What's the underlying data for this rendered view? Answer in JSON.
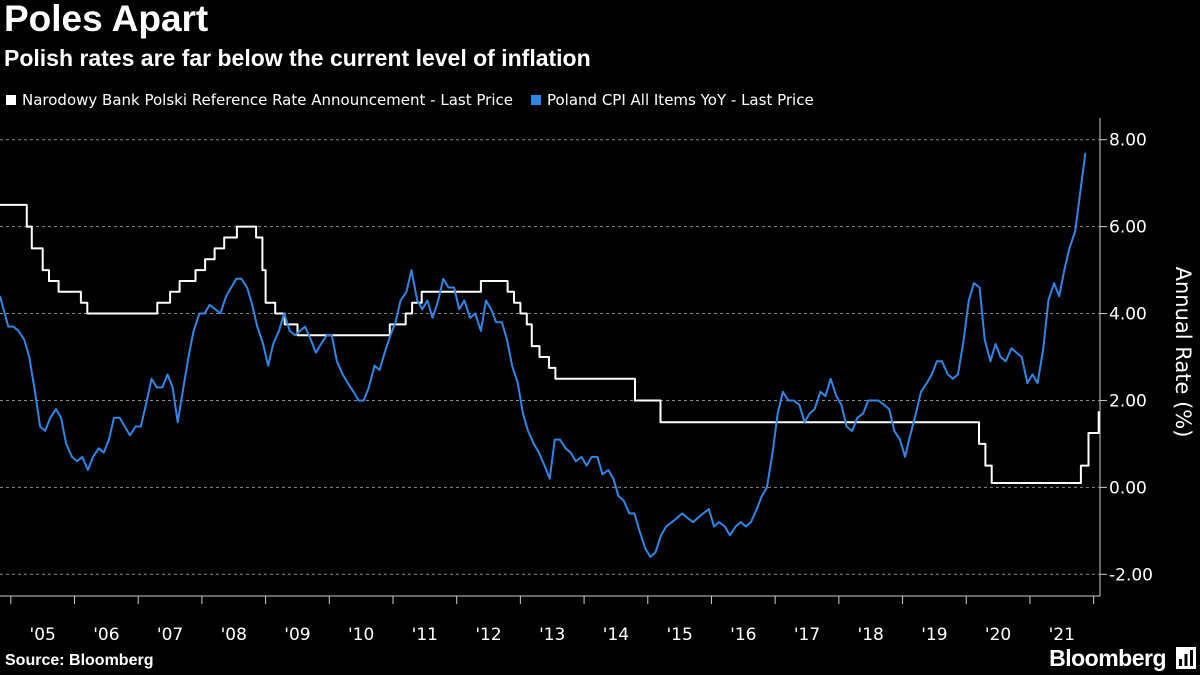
{
  "header": {
    "title": "Poles Apart",
    "subtitle": "Polish rates are far below the current level of inflation"
  },
  "footer": {
    "source": "Source: Bloomberg",
    "brand": "Bloomberg",
    "brand_icon": "bloomberg-logo-icon"
  },
  "colors": {
    "background": "#000000",
    "reference_rate": "#ffffff",
    "cpi": "#2f86e6",
    "grid": "#8a8a8a",
    "text": "#ffffff"
  },
  "chart_data": {
    "type": "line",
    "title": "Poles Apart",
    "subtitle": "Polish rates are far below the current level of inflation",
    "ylabel": "Annual Rate (%)",
    "xlabel": "",
    "ylim": [
      -2.5,
      8.5
    ],
    "xlim": [
      2004.83,
      2022.1
    ],
    "yticks": [
      8,
      6,
      4,
      2,
      0,
      -2
    ],
    "ytick_labels": [
      "8.00",
      "6.00",
      "4.00",
      "2.00",
      "0.00",
      "-2.00"
    ],
    "xtick_labels": [
      "'05",
      "'06",
      "'07",
      "'08",
      "'09",
      "'10",
      "'11",
      "'12",
      "'13",
      "'14",
      "'15",
      "'16",
      "'17",
      "'18",
      "'19",
      "'20",
      "'21"
    ],
    "grid": "horizontal dashed",
    "legend_position": "top-left",
    "series": [
      {
        "name": "Narodowy Bank Polski Reference Rate Announcement - Last Price",
        "color": "#ffffff",
        "step": true,
        "points": [
          [
            2004.83,
            6.5
          ],
          [
            2005.25,
            6.0
          ],
          [
            2005.33,
            5.5
          ],
          [
            2005.5,
            5.0
          ],
          [
            2005.6,
            4.75
          ],
          [
            2005.75,
            4.5
          ],
          [
            2006.1,
            4.25
          ],
          [
            2006.2,
            4.0
          ],
          [
            2007.3,
            4.25
          ],
          [
            2007.5,
            4.5
          ],
          [
            2007.65,
            4.75
          ],
          [
            2007.9,
            5.0
          ],
          [
            2008.05,
            5.25
          ],
          [
            2008.2,
            5.5
          ],
          [
            2008.35,
            5.75
          ],
          [
            2008.55,
            6.0
          ],
          [
            2008.85,
            5.75
          ],
          [
            2008.95,
            5.0
          ],
          [
            2009.0,
            4.25
          ],
          [
            2009.15,
            4.0
          ],
          [
            2009.3,
            3.75
          ],
          [
            2009.5,
            3.5
          ],
          [
            2010.95,
            3.75
          ],
          [
            2011.2,
            4.0
          ],
          [
            2011.3,
            4.25
          ],
          [
            2011.45,
            4.5
          ],
          [
            2011.9,
            4.5
          ],
          [
            2012.38,
            4.75
          ],
          [
            2012.8,
            4.5
          ],
          [
            2012.9,
            4.25
          ],
          [
            2013.0,
            4.0
          ],
          [
            2013.1,
            3.75
          ],
          [
            2013.18,
            3.25
          ],
          [
            2013.3,
            3.0
          ],
          [
            2013.45,
            2.75
          ],
          [
            2013.55,
            2.5
          ],
          [
            2014.8,
            2.0
          ],
          [
            2015.2,
            1.5
          ],
          [
            2020.2,
            1.0
          ],
          [
            2020.3,
            0.5
          ],
          [
            2020.4,
            0.1
          ],
          [
            2021.8,
            0.5
          ],
          [
            2021.92,
            1.25
          ],
          [
            2022.08,
            1.75
          ]
        ]
      },
      {
        "name": "Poland CPI All Items YoY - Last Price",
        "color": "#2f86e6",
        "step": false,
        "points": [
          [
            2004.83,
            4.4
          ],
          [
            2004.96,
            3.7
          ],
          [
            2005.04,
            3.7
          ],
          [
            2005.12,
            3.6
          ],
          [
            2005.21,
            3.4
          ],
          [
            2005.29,
            3.0
          ],
          [
            2005.38,
            2.2
          ],
          [
            2005.46,
            1.4
          ],
          [
            2005.54,
            1.3
          ],
          [
            2005.62,
            1.6
          ],
          [
            2005.71,
            1.8
          ],
          [
            2005.79,
            1.6
          ],
          [
            2005.87,
            1.0
          ],
          [
            2005.96,
            0.7
          ],
          [
            2006.04,
            0.6
          ],
          [
            2006.12,
            0.7
          ],
          [
            2006.21,
            0.4
          ],
          [
            2006.29,
            0.7
          ],
          [
            2006.38,
            0.9
          ],
          [
            2006.46,
            0.8
          ],
          [
            2006.54,
            1.1
          ],
          [
            2006.62,
            1.6
          ],
          [
            2006.71,
            1.6
          ],
          [
            2006.79,
            1.4
          ],
          [
            2006.87,
            1.2
          ],
          [
            2006.96,
            1.4
          ],
          [
            2007.04,
            1.4
          ],
          [
            2007.12,
            1.9
          ],
          [
            2007.21,
            2.5
          ],
          [
            2007.29,
            2.3
          ],
          [
            2007.38,
            2.3
          ],
          [
            2007.46,
            2.6
          ],
          [
            2007.54,
            2.3
          ],
          [
            2007.62,
            1.5
          ],
          [
            2007.71,
            2.3
          ],
          [
            2007.79,
            3.0
          ],
          [
            2007.87,
            3.6
          ],
          [
            2007.96,
            4.0
          ],
          [
            2008.04,
            4.0
          ],
          [
            2008.12,
            4.2
          ],
          [
            2008.21,
            4.1
          ],
          [
            2008.29,
            4.0
          ],
          [
            2008.38,
            4.4
          ],
          [
            2008.46,
            4.6
          ],
          [
            2008.54,
            4.8
          ],
          [
            2008.62,
            4.8
          ],
          [
            2008.71,
            4.6
          ],
          [
            2008.79,
            4.2
          ],
          [
            2008.87,
            3.7
          ],
          [
            2008.96,
            3.3
          ],
          [
            2009.04,
            2.8
          ],
          [
            2009.12,
            3.3
          ],
          [
            2009.21,
            3.6
          ],
          [
            2009.29,
            4.0
          ],
          [
            2009.38,
            3.6
          ],
          [
            2009.46,
            3.5
          ],
          [
            2009.54,
            3.6
          ],
          [
            2009.62,
            3.7
          ],
          [
            2009.71,
            3.4
          ],
          [
            2009.79,
            3.1
          ],
          [
            2009.87,
            3.3
          ],
          [
            2009.96,
            3.5
          ],
          [
            2010.04,
            3.5
          ],
          [
            2010.12,
            2.9
          ],
          [
            2010.21,
            2.6
          ],
          [
            2010.29,
            2.4
          ],
          [
            2010.38,
            2.2
          ],
          [
            2010.46,
            2.0
          ],
          [
            2010.54,
            2.0
          ],
          [
            2010.62,
            2.3
          ],
          [
            2010.71,
            2.8
          ],
          [
            2010.79,
            2.7
          ],
          [
            2010.87,
            3.1
          ],
          [
            2010.96,
            3.5
          ],
          [
            2011.04,
            3.8
          ],
          [
            2011.12,
            4.3
          ],
          [
            2011.21,
            4.5
          ],
          [
            2011.29,
            5.0
          ],
          [
            2011.38,
            4.3
          ],
          [
            2011.46,
            4.1
          ],
          [
            2011.54,
            4.3
          ],
          [
            2011.62,
            3.9
          ],
          [
            2011.71,
            4.3
          ],
          [
            2011.79,
            4.8
          ],
          [
            2011.87,
            4.6
          ],
          [
            2011.96,
            4.6
          ],
          [
            2012.04,
            4.1
          ],
          [
            2012.12,
            4.3
          ],
          [
            2012.21,
            3.9
          ],
          [
            2012.29,
            4.0
          ],
          [
            2012.38,
            3.6
          ],
          [
            2012.46,
            4.3
          ],
          [
            2012.54,
            4.1
          ],
          [
            2012.62,
            3.8
          ],
          [
            2012.71,
            3.8
          ],
          [
            2012.79,
            3.4
          ],
          [
            2012.87,
            2.8
          ],
          [
            2012.96,
            2.4
          ],
          [
            2013.04,
            1.7
          ],
          [
            2013.12,
            1.3
          ],
          [
            2013.21,
            1.0
          ],
          [
            2013.29,
            0.8
          ],
          [
            2013.38,
            0.5
          ],
          [
            2013.46,
            0.2
          ],
          [
            2013.54,
            1.1
          ],
          [
            2013.62,
            1.1
          ],
          [
            2013.71,
            0.9
          ],
          [
            2013.79,
            0.8
          ],
          [
            2013.87,
            0.6
          ],
          [
            2013.96,
            0.7
          ],
          [
            2014.04,
            0.5
          ],
          [
            2014.12,
            0.7
          ],
          [
            2014.21,
            0.7
          ],
          [
            2014.29,
            0.3
          ],
          [
            2014.38,
            0.4
          ],
          [
            2014.46,
            0.2
          ],
          [
            2014.54,
            -0.2
          ],
          [
            2014.62,
            -0.3
          ],
          [
            2014.71,
            -0.6
          ],
          [
            2014.79,
            -0.6
          ],
          [
            2014.87,
            -1.0
          ],
          [
            2014.96,
            -1.4
          ],
          [
            2015.04,
            -1.6
          ],
          [
            2015.12,
            -1.5
          ],
          [
            2015.21,
            -1.1
          ],
          [
            2015.29,
            -0.9
          ],
          [
            2015.38,
            -0.8
          ],
          [
            2015.46,
            -0.7
          ],
          [
            2015.54,
            -0.6
          ],
          [
            2015.62,
            -0.7
          ],
          [
            2015.71,
            -0.8
          ],
          [
            2015.79,
            -0.7
          ],
          [
            2015.87,
            -0.6
          ],
          [
            2015.96,
            -0.5
          ],
          [
            2016.04,
            -0.9
          ],
          [
            2016.12,
            -0.8
          ],
          [
            2016.21,
            -0.9
          ],
          [
            2016.29,
            -1.1
          ],
          [
            2016.38,
            -0.9
          ],
          [
            2016.46,
            -0.8
          ],
          [
            2016.54,
            -0.9
          ],
          [
            2016.62,
            -0.8
          ],
          [
            2016.71,
            -0.5
          ],
          [
            2016.79,
            -0.2
          ],
          [
            2016.87,
            0.0
          ],
          [
            2016.96,
            0.8
          ],
          [
            2017.04,
            1.7
          ],
          [
            2017.12,
            2.2
          ],
          [
            2017.21,
            2.0
          ],
          [
            2017.29,
            2.0
          ],
          [
            2017.38,
            1.9
          ],
          [
            2017.46,
            1.5
          ],
          [
            2017.54,
            1.7
          ],
          [
            2017.62,
            1.8
          ],
          [
            2017.71,
            2.2
          ],
          [
            2017.79,
            2.1
          ],
          [
            2017.87,
            2.5
          ],
          [
            2017.96,
            2.1
          ],
          [
            2018.04,
            1.9
          ],
          [
            2018.12,
            1.4
          ],
          [
            2018.21,
            1.3
          ],
          [
            2018.29,
            1.6
          ],
          [
            2018.38,
            1.7
          ],
          [
            2018.46,
            2.0
          ],
          [
            2018.54,
            2.0
          ],
          [
            2018.62,
            2.0
          ],
          [
            2018.71,
            1.9
          ],
          [
            2018.79,
            1.8
          ],
          [
            2018.87,
            1.3
          ],
          [
            2018.96,
            1.1
          ],
          [
            2019.04,
            0.7
          ],
          [
            2019.12,
            1.2
          ],
          [
            2019.21,
            1.7
          ],
          [
            2019.29,
            2.2
          ],
          [
            2019.38,
            2.4
          ],
          [
            2019.46,
            2.6
          ],
          [
            2019.54,
            2.9
          ],
          [
            2019.62,
            2.9
          ],
          [
            2019.71,
            2.6
          ],
          [
            2019.79,
            2.5
          ],
          [
            2019.87,
            2.6
          ],
          [
            2019.96,
            3.4
          ],
          [
            2020.04,
            4.3
          ],
          [
            2020.12,
            4.7
          ],
          [
            2020.21,
            4.6
          ],
          [
            2020.29,
            3.4
          ],
          [
            2020.38,
            2.9
          ],
          [
            2020.46,
            3.3
          ],
          [
            2020.54,
            3.0
          ],
          [
            2020.62,
            2.9
          ],
          [
            2020.71,
            3.2
          ],
          [
            2020.79,
            3.1
          ],
          [
            2020.87,
            3.0
          ],
          [
            2020.96,
            2.4
          ],
          [
            2021.04,
            2.6
          ],
          [
            2021.12,
            2.4
          ],
          [
            2021.21,
            3.2
          ],
          [
            2021.29,
            4.3
          ],
          [
            2021.38,
            4.7
          ],
          [
            2021.46,
            4.4
          ],
          [
            2021.54,
            5.0
          ],
          [
            2021.62,
            5.5
          ],
          [
            2021.71,
            5.9
          ],
          [
            2021.79,
            6.8
          ],
          [
            2021.87,
            7.7
          ]
        ]
      }
    ]
  }
}
